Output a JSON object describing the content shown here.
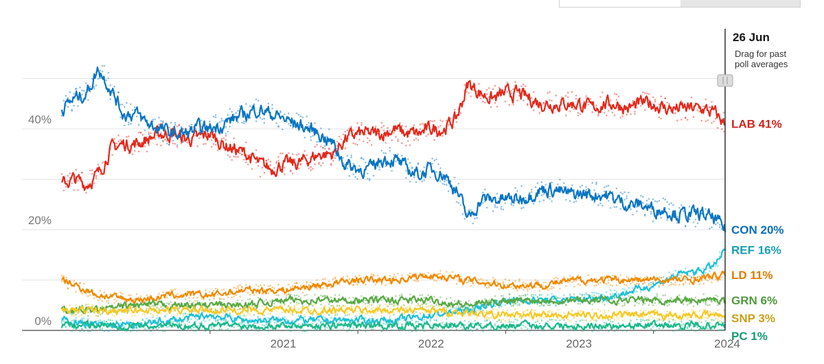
{
  "header": {
    "date": "26 Jun",
    "note_line1": "Drag for past",
    "note_line2": "poll averages"
  },
  "chart_data": {
    "type": "line",
    "xlim": [
      "2020-01-01",
      "2024-06-26"
    ],
    "ylim": [
      0,
      50
    ],
    "y_ticks": [
      {
        "value": 40,
        "label": "40%"
      },
      {
        "value": 20,
        "label": "20%"
      },
      {
        "value": 0,
        "label": "0%"
      }
    ],
    "x_ticks": [
      "2021",
      "2022",
      "2023",
      "2024"
    ],
    "grid": true,
    "legend": "end-labels-right",
    "series": [
      {
        "name": "LAB 41%",
        "color": "#e4281b",
        "points": [
          [
            "2020-01-01",
            29
          ],
          [
            "2020-02-01",
            30
          ],
          [
            "2020-03-01",
            29
          ],
          [
            "2020-04-01",
            31
          ],
          [
            "2020-05-01",
            36
          ],
          [
            "2020-06-01",
            37
          ],
          [
            "2020-07-01",
            37
          ],
          [
            "2020-08-01",
            38
          ],
          [
            "2020-09-01",
            39
          ],
          [
            "2020-10-01",
            39
          ],
          [
            "2020-11-01",
            38
          ],
          [
            "2020-12-01",
            38
          ],
          [
            "2021-01-01",
            39
          ],
          [
            "2021-02-01",
            37
          ],
          [
            "2021-03-01",
            36
          ],
          [
            "2021-04-01",
            35
          ],
          [
            "2021-05-01",
            33
          ],
          [
            "2021-06-01",
            32
          ],
          [
            "2021-07-01",
            33
          ],
          [
            "2021-08-01",
            33
          ],
          [
            "2021-09-01",
            34
          ],
          [
            "2021-10-01",
            35
          ],
          [
            "2021-11-01",
            35
          ],
          [
            "2021-12-01",
            38
          ],
          [
            "2022-01-01",
            39
          ],
          [
            "2022-02-01",
            39
          ],
          [
            "2022-03-01",
            39
          ],
          [
            "2022-04-01",
            40
          ],
          [
            "2022-05-01",
            39
          ],
          [
            "2022-06-01",
            39
          ],
          [
            "2022-07-01",
            40
          ],
          [
            "2022-08-01",
            40
          ],
          [
            "2022-09-01",
            42
          ],
          [
            "2022-10-01",
            49
          ],
          [
            "2022-11-01",
            47
          ],
          [
            "2022-12-01",
            46
          ],
          [
            "2023-01-01",
            47
          ],
          [
            "2023-02-01",
            47
          ],
          [
            "2023-03-01",
            46
          ],
          [
            "2023-04-01",
            45
          ],
          [
            "2023-05-01",
            45
          ],
          [
            "2023-06-01",
            45
          ],
          [
            "2023-07-01",
            45
          ],
          [
            "2023-08-01",
            44
          ],
          [
            "2023-09-01",
            45
          ],
          [
            "2023-10-01",
            45
          ],
          [
            "2023-11-01",
            44
          ],
          [
            "2023-12-01",
            45
          ],
          [
            "2024-01-01",
            45
          ],
          [
            "2024-02-01",
            44
          ],
          [
            "2024-03-01",
            44
          ],
          [
            "2024-04-01",
            44
          ],
          [
            "2024-05-01",
            44
          ],
          [
            "2024-06-01",
            43
          ],
          [
            "2024-06-26",
            41
          ]
        ]
      },
      {
        "name": "CON 20%",
        "color": "#0a75c2",
        "points": [
          [
            "2020-01-01",
            44
          ],
          [
            "2020-02-01",
            46
          ],
          [
            "2020-03-01",
            47
          ],
          [
            "2020-04-01",
            52
          ],
          [
            "2020-05-01",
            48
          ],
          [
            "2020-06-01",
            43
          ],
          [
            "2020-07-01",
            43
          ],
          [
            "2020-08-01",
            41
          ],
          [
            "2020-09-01",
            40
          ],
          [
            "2020-10-01",
            39
          ],
          [
            "2020-11-01",
            39
          ],
          [
            "2020-12-01",
            40
          ],
          [
            "2021-01-01",
            40
          ],
          [
            "2021-02-01",
            41
          ],
          [
            "2021-03-01",
            42
          ],
          [
            "2021-04-01",
            43
          ],
          [
            "2021-05-01",
            44
          ],
          [
            "2021-06-01",
            43
          ],
          [
            "2021-07-01",
            42
          ],
          [
            "2021-08-01",
            41
          ],
          [
            "2021-09-01",
            40
          ],
          [
            "2021-10-01",
            39
          ],
          [
            "2021-11-01",
            37
          ],
          [
            "2021-12-01",
            33
          ],
          [
            "2022-01-01",
            32
          ],
          [
            "2022-02-01",
            32
          ],
          [
            "2022-03-01",
            34
          ],
          [
            "2022-04-01",
            34
          ],
          [
            "2022-05-01",
            32
          ],
          [
            "2022-06-01",
            31
          ],
          [
            "2022-07-01",
            32
          ],
          [
            "2022-08-01",
            31
          ],
          [
            "2022-09-01",
            28
          ],
          [
            "2022-10-01",
            22
          ],
          [
            "2022-11-01",
            26
          ],
          [
            "2022-12-01",
            26
          ],
          [
            "2023-01-01",
            26
          ],
          [
            "2023-02-01",
            26
          ],
          [
            "2023-03-01",
            27
          ],
          [
            "2023-04-01",
            28
          ],
          [
            "2023-05-01",
            28
          ],
          [
            "2023-06-01",
            27
          ],
          [
            "2023-07-01",
            27
          ],
          [
            "2023-08-01",
            27
          ],
          [
            "2023-09-01",
            27
          ],
          [
            "2023-10-01",
            26
          ],
          [
            "2023-11-01",
            25
          ],
          [
            "2023-12-01",
            25
          ],
          [
            "2024-01-01",
            24
          ],
          [
            "2024-02-01",
            24
          ],
          [
            "2024-03-01",
            23
          ],
          [
            "2024-04-01",
            23
          ],
          [
            "2024-05-01",
            23
          ],
          [
            "2024-06-01",
            22
          ],
          [
            "2024-06-26",
            20
          ]
        ]
      },
      {
        "name": "REF 16%",
        "color": "#1fc0d7",
        "points": [
          [
            "2020-01-01",
            2
          ],
          [
            "2020-04-01",
            1
          ],
          [
            "2020-07-01",
            1
          ],
          [
            "2020-10-01",
            2
          ],
          [
            "2021-01-01",
            3
          ],
          [
            "2021-04-01",
            2
          ],
          [
            "2021-07-01",
            2
          ],
          [
            "2021-10-01",
            2
          ],
          [
            "2022-01-01",
            2
          ],
          [
            "2022-04-01",
            2
          ],
          [
            "2022-07-01",
            3
          ],
          [
            "2022-10-01",
            4
          ],
          [
            "2023-01-01",
            6
          ],
          [
            "2023-04-01",
            6
          ],
          [
            "2023-07-01",
            6
          ],
          [
            "2023-10-01",
            7
          ],
          [
            "2024-01-01",
            9
          ],
          [
            "2024-03-01",
            11
          ],
          [
            "2024-05-01",
            12
          ],
          [
            "2024-06-01",
            13
          ],
          [
            "2024-06-26",
            16
          ]
        ]
      },
      {
        "name": "LD 11%",
        "color": "#f08a00",
        "points": [
          [
            "2020-01-01",
            10
          ],
          [
            "2020-02-01",
            9
          ],
          [
            "2020-04-01",
            7
          ],
          [
            "2020-07-01",
            6
          ],
          [
            "2020-10-01",
            7
          ],
          [
            "2021-01-01",
            7
          ],
          [
            "2021-04-01",
            8
          ],
          [
            "2021-07-01",
            8
          ],
          [
            "2021-10-01",
            9
          ],
          [
            "2022-01-01",
            10
          ],
          [
            "2022-04-01",
            10
          ],
          [
            "2022-07-01",
            11
          ],
          [
            "2022-10-01",
            10
          ],
          [
            "2023-01-01",
            9
          ],
          [
            "2023-04-01",
            9
          ],
          [
            "2023-07-01",
            10
          ],
          [
            "2023-10-01",
            10
          ],
          [
            "2024-01-01",
            10
          ],
          [
            "2024-04-01",
            10
          ],
          [
            "2024-06-26",
            11
          ]
        ]
      },
      {
        "name": "GRN 6%",
        "color": "#58a844",
        "points": [
          [
            "2020-01-01",
            4
          ],
          [
            "2020-04-01",
            4
          ],
          [
            "2020-07-01",
            5
          ],
          [
            "2020-10-01",
            5
          ],
          [
            "2021-01-01",
            5
          ],
          [
            "2021-04-01",
            5
          ],
          [
            "2021-07-01",
            6
          ],
          [
            "2021-10-01",
            6
          ],
          [
            "2022-01-01",
            6
          ],
          [
            "2022-04-01",
            6
          ],
          [
            "2022-07-01",
            6
          ],
          [
            "2022-10-01",
            5
          ],
          [
            "2023-01-01",
            6
          ],
          [
            "2023-04-01",
            6
          ],
          [
            "2023-07-01",
            6
          ],
          [
            "2023-10-01",
            6
          ],
          [
            "2024-01-01",
            6
          ],
          [
            "2024-04-01",
            6
          ],
          [
            "2024-06-26",
            6
          ]
        ]
      },
      {
        "name": "SNP 3%",
        "color": "#f5c927",
        "points": [
          [
            "2020-01-01",
            4
          ],
          [
            "2020-06-01",
            4
          ],
          [
            "2021-01-01",
            4
          ],
          [
            "2021-06-01",
            4
          ],
          [
            "2022-01-01",
            4
          ],
          [
            "2022-06-01",
            4
          ],
          [
            "2023-01-01",
            3
          ],
          [
            "2023-06-01",
            3
          ],
          [
            "2024-01-01",
            3
          ],
          [
            "2024-06-26",
            3
          ]
        ]
      },
      {
        "name": "PC 1%",
        "color": "#1cb98a",
        "points": [
          [
            "2020-01-01",
            1
          ],
          [
            "2021-01-01",
            1
          ],
          [
            "2022-01-01",
            1
          ],
          [
            "2023-01-01",
            1
          ],
          [
            "2024-06-26",
            1
          ]
        ]
      }
    ]
  }
}
